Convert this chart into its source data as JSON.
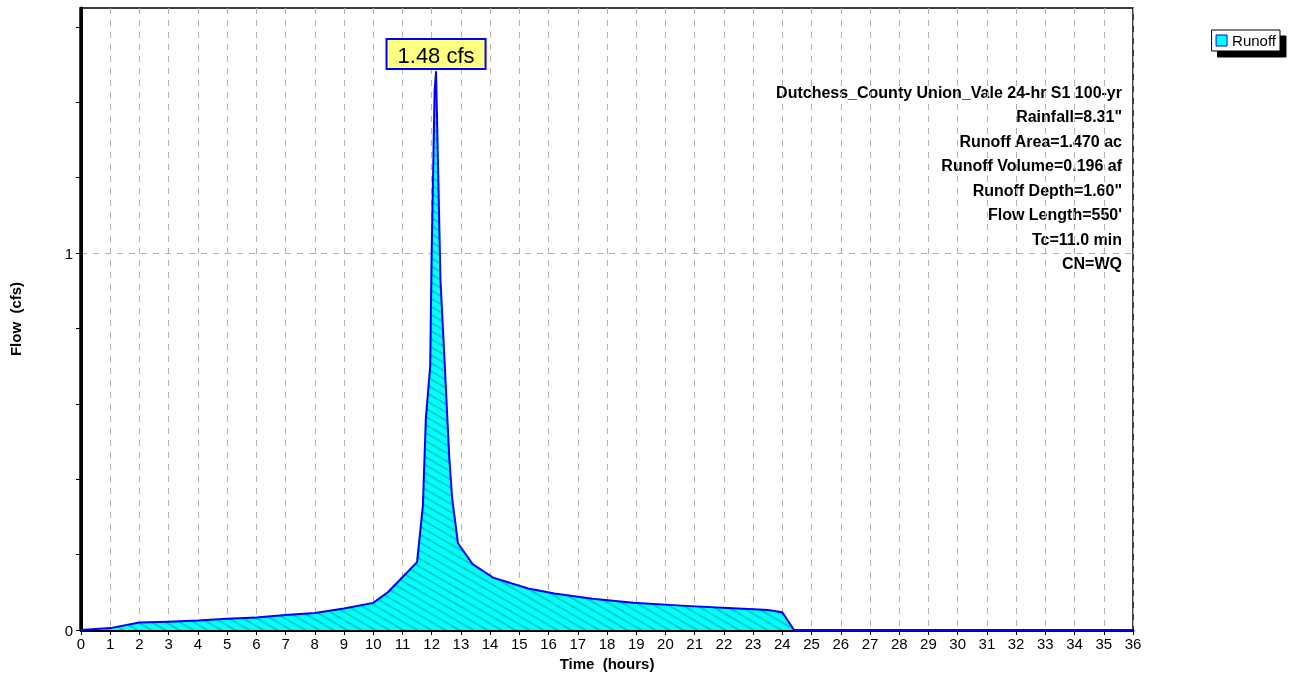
{
  "chart_data": {
    "type": "area",
    "xlabel": "Time  (hours)",
    "ylabel": "Flow  (cfs)",
    "x": [
      0,
      1,
      2,
      3,
      4,
      5,
      6,
      7,
      8,
      9,
      10,
      10.5,
      11,
      11.5,
      11.7,
      11.8,
      11.95,
      12.0,
      12.1,
      12.15,
      12.3,
      12.45,
      12.6,
      12.7,
      12.9,
      13.4,
      14.1,
      15.3,
      16.2,
      17.5,
      18.9,
      20.7,
      22.3,
      23.5,
      24.0,
      24.4,
      36
    ],
    "series": [
      {
        "name": "Runoff",
        "color": "#00ffff",
        "values": [
          0,
          0.005,
          0.02,
          0.022,
          0.025,
          0.03,
          0.033,
          0.04,
          0.045,
          0.057,
          0.072,
          0.1,
          0.14,
          0.18,
          0.33,
          0.56,
          0.7,
          1.0,
          1.43,
          1.48,
          0.93,
          0.7,
          0.46,
          0.35,
          0.23,
          0.175,
          0.139,
          0.11,
          0.097,
          0.083,
          0.072,
          0.064,
          0.058,
          0.053,
          0.047,
          0,
          0
        ]
      }
    ],
    "xlim": [
      0,
      36
    ],
    "xticks": [
      0,
      1,
      2,
      3,
      4,
      5,
      6,
      7,
      8,
      9,
      10,
      11,
      12,
      13,
      14,
      15,
      16,
      17,
      18,
      19,
      20,
      21,
      22,
      23,
      24,
      25,
      26,
      27,
      28,
      29,
      30,
      31,
      32,
      33,
      34,
      35,
      36
    ],
    "ylim": [
      0,
      1.65
    ],
    "yticks": [
      0,
      {
        "value": 0.2,
        "label": null
      },
      {
        "value": 0.4,
        "label": null
      },
      {
        "value": 0.6,
        "label": null
      },
      {
        "value": 0.8,
        "label": null
      },
      1,
      {
        "value": 1.2,
        "label": null
      },
      {
        "value": 1.4,
        "label": null
      },
      {
        "value": 1.6,
        "label": null
      }
    ],
    "annotations": [
      {
        "text": "1.48 cfs",
        "x": 12.15,
        "y": 1.48
      },
      "Dutchess_County Union_Vale 24-hr S1 100-yr",
      "Rainfall=8.31\"",
      "Runoff Area=1.470 ac",
      "Runoff Volume=0.196 af",
      "Runoff Depth=1.60\"",
      "Flow Length=550'",
      "Tc=11.0 min",
      "CN=WQ"
    ],
    "grid": true,
    "legend": "top right",
    "marker": "none",
    "line_style": "solid"
  }
}
